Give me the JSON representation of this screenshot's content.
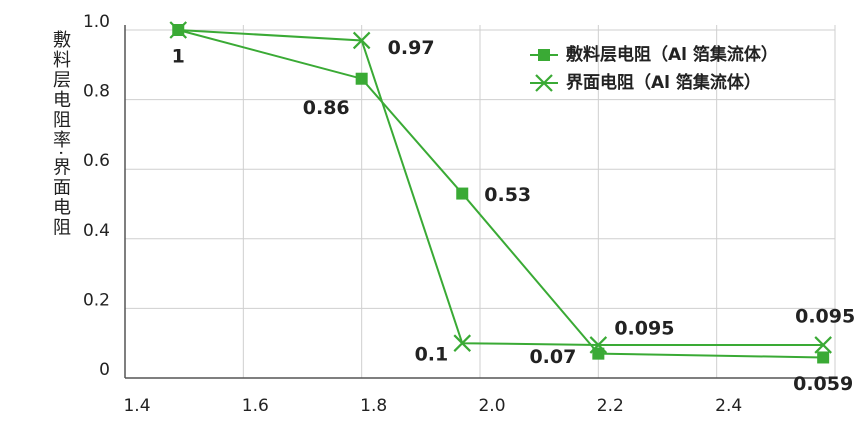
{
  "chart_data": {
    "type": "line",
    "y_label": "敷料层电阻率·界面电阻",
    "xlim": [
      1.4,
      2.6
    ],
    "xticks": [
      1.4,
      1.6,
      1.8,
      {
        "value": 2,
        "label": "2.0"
      },
      2.2,
      2.4
    ],
    "ylim": [
      0,
      1
    ],
    "yticks": [
      0,
      0.2,
      0.4,
      0.6,
      0.8,
      {
        "value": 1,
        "label": "1.0"
      }
    ],
    "grid": true,
    "legend": "upper right",
    "series": [
      {
        "name": "敷料层电阻（Al 箔集流体）",
        "color": "#3aaa35",
        "marker": "square",
        "x": [
          1.49,
          1.8,
          1.97,
          2.2,
          2.58
        ],
        "values": [
          1,
          0.86,
          0.53,
          0.07,
          0.059
        ],
        "value_labels": [
          "1",
          "0.86",
          "0.53",
          "0.07",
          "0.059"
        ]
      },
      {
        "name": "界面电阻（Al 箔集流体）",
        "color": "#3aaa35",
        "marker": "x",
        "x": [
          1.49,
          1.8,
          1.97,
          2.2,
          2.58
        ],
        "values": [
          1,
          0.97,
          0.1,
          0.095,
          0.095
        ],
        "value_labels": [
          null,
          "0.97",
          "0.1",
          "0.095",
          "0.095"
        ]
      }
    ]
  }
}
